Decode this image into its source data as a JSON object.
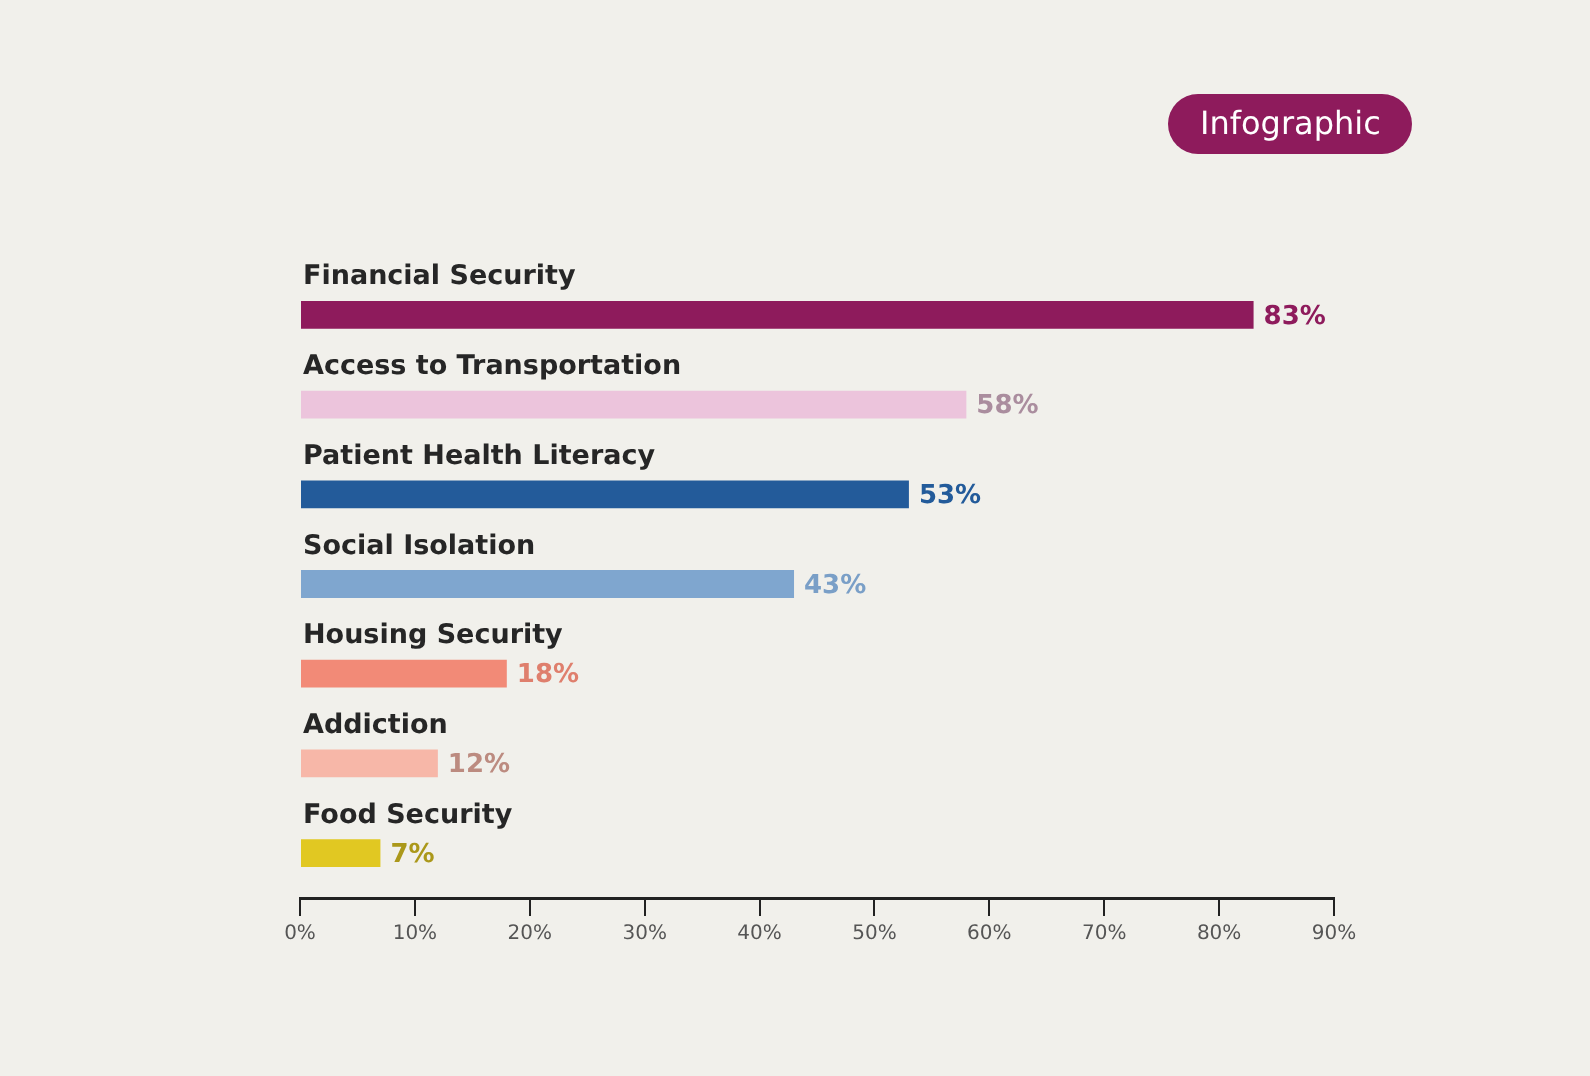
{
  "chart_data": {
    "type": "bar",
    "orientation": "horizontal",
    "categories": [
      "Financial Security",
      "Access to Transportation",
      "Patient Health Literacy",
      "Social Isolation",
      "Housing Security",
      "Addiction",
      "Food Security"
    ],
    "values": [
      83,
      58,
      53,
      43,
      18,
      12,
      7
    ],
    "colors": [
      "#8e1b5c",
      "#ecc4dc",
      "#235b9a",
      "#7fa6cf",
      "#f28a77",
      "#f7b7a8",
      "#e1c822"
    ],
    "value_labels": [
      "83%",
      "58%",
      "53%",
      "43%",
      "18%",
      "12%",
      "7%"
    ],
    "xlim": [
      0,
      90
    ],
    "xticks": [
      {
        "value": 0,
        "label": "0%"
      },
      {
        "value": 10,
        "label": "10%"
      },
      {
        "value": 20,
        "label": "20%"
      },
      {
        "value": 30,
        "label": "30%"
      },
      {
        "value": 40,
        "label": "40%"
      },
      {
        "value": 50,
        "label": "50%"
      },
      {
        "value": 60,
        "label": "60%"
      },
      {
        "value": 70,
        "label": "70%"
      },
      {
        "value": 80,
        "label": "80%"
      },
      {
        "value": 90,
        "label": "90%"
      }
    ],
    "grid": false,
    "legend": false,
    "annotations": [
      "Infographic"
    ]
  }
}
